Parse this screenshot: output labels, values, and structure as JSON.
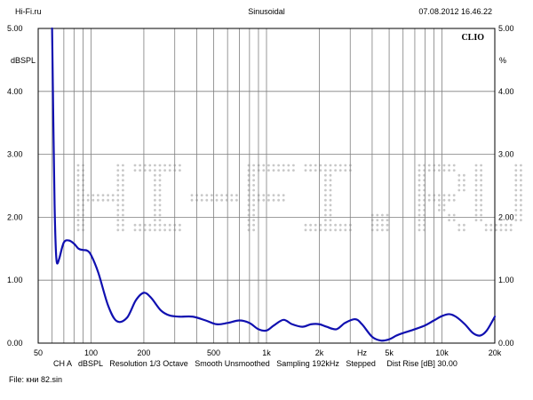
{
  "header": {
    "left": "Hi-Fi.ru",
    "center": "Sinusoidal",
    "right": "07.08.2012 16.46.22"
  },
  "brand": "CLIO",
  "footer": {
    "line": "CH A   dBSPL   Resolution 1/3 Octave   Smooth Unsmoothed   Sampling 192kHz   Stepped     Dist Rise [dB] 30.00",
    "file": "File: кни 82.sin"
  },
  "watermark": "HI-FI.RU",
  "colors": {
    "trace": "#1010b0",
    "grid": "#7f7f7f",
    "frame": "#000000",
    "watermark": "#c8c8c8"
  },
  "chart_data": {
    "type": "line",
    "x_scale": "log",
    "xlim": [
      50,
      20000
    ],
    "ylim": [
      0,
      5
    ],
    "left_unit": "dBSPL",
    "right_unit": "%",
    "y_ticks": [
      "0.00",
      "1.00",
      "2.00",
      "3.00",
      "4.00",
      "5.00"
    ],
    "x_tick_labels": [
      {
        "value": 50,
        "label": "50"
      },
      {
        "value": 100,
        "label": "100"
      },
      {
        "value": 200,
        "label": "200"
      },
      {
        "value": 500,
        "label": "500"
      },
      {
        "value": 1000,
        "label": "1k"
      },
      {
        "value": 2000,
        "label": "2k"
      },
      {
        "value": 3500,
        "label": "Hz"
      },
      {
        "value": 5000,
        "label": "5k"
      },
      {
        "value": 10000,
        "label": "10k"
      },
      {
        "value": 20000,
        "label": "20k"
      }
    ],
    "x_grid": [
      60,
      70,
      80,
      90,
      100,
      200,
      300,
      400,
      500,
      600,
      700,
      800,
      900,
      1000,
      2000,
      3000,
      4000,
      5000,
      6000,
      7000,
      8000,
      9000,
      10000
    ],
    "grid": true,
    "series": [
      {
        "x": [
          60,
          61,
          62,
          63,
          64,
          66,
          70,
          75,
          80,
          85,
          90,
          95,
          100,
          110,
          125,
          140,
          160,
          180,
          200,
          220,
          250,
          280,
          320,
          380,
          450,
          520,
          600,
          700,
          800,
          900,
          1000,
          1100,
          1250,
          1400,
          1600,
          1800,
          2000,
          2200,
          2500,
          2800,
          3200,
          3500,
          4000,
          4500,
          5000,
          5500,
          6000,
          7000,
          8000,
          9000,
          10000,
          11000,
          12000,
          13500,
          15000,
          16500,
          18000,
          20000
        ],
        "y": [
          5.0,
          3.5,
          2.2,
          1.5,
          1.27,
          1.35,
          1.6,
          1.63,
          1.58,
          1.5,
          1.48,
          1.47,
          1.4,
          1.12,
          0.6,
          0.35,
          0.4,
          0.68,
          0.8,
          0.72,
          0.52,
          0.44,
          0.42,
          0.42,
          0.36,
          0.3,
          0.32,
          0.36,
          0.32,
          0.22,
          0.2,
          0.28,
          0.37,
          0.3,
          0.26,
          0.3,
          0.3,
          0.26,
          0.22,
          0.32,
          0.38,
          0.3,
          0.1,
          0.04,
          0.06,
          0.12,
          0.16,
          0.22,
          0.28,
          0.36,
          0.43,
          0.46,
          0.42,
          0.3,
          0.16,
          0.12,
          0.2,
          0.42
        ]
      }
    ]
  }
}
